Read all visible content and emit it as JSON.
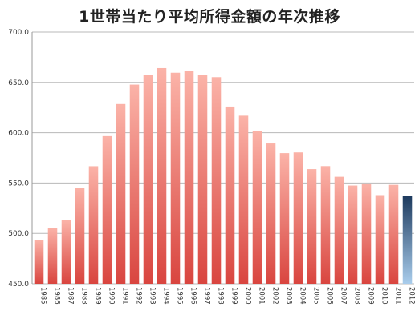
{
  "chart_data": {
    "type": "bar",
    "title": "1世帯当たり平均所得金額の年次推移",
    "xlabel": "",
    "ylabel": "",
    "ylim": [
      450,
      700
    ],
    "yticks": [
      "450.0",
      "500.0",
      "550.0",
      "600.0",
      "650.0",
      "700.0"
    ],
    "grid": true,
    "categories": [
      "1985",
      "1986",
      "1987",
      "1988",
      "1989",
      "1990",
      "1991",
      "1992",
      "1993",
      "1994",
      "1995",
      "1996",
      "1997",
      "1998",
      "1999",
      "2000",
      "2001",
      "2002",
      "2003",
      "2004",
      "2005",
      "2006",
      "2007",
      "2008",
      "2009",
      "2010",
      "2011",
      "2012"
    ],
    "values": [
      493.3,
      505.6,
      513.1,
      545.3,
      566.7,
      596.6,
      628.5,
      647.8,
      657.5,
      664.2,
      659.6,
      661.2,
      657.7,
      655.2,
      626.0,
      616.9,
      602.0,
      589.3,
      579.7,
      580.4,
      563.8,
      566.8,
      556.2,
      547.5,
      549.6,
      538.0,
      548.2,
      537.2
    ],
    "colors": {
      "bar_top": "#fbb3a8",
      "bar_bottom": "#d9453f",
      "highlight_top": "#1d3a5e",
      "highlight_bottom": "#a9cdec",
      "grid": "#b8b8b8",
      "axis": "#999999"
    },
    "highlight_category": "2012"
  }
}
